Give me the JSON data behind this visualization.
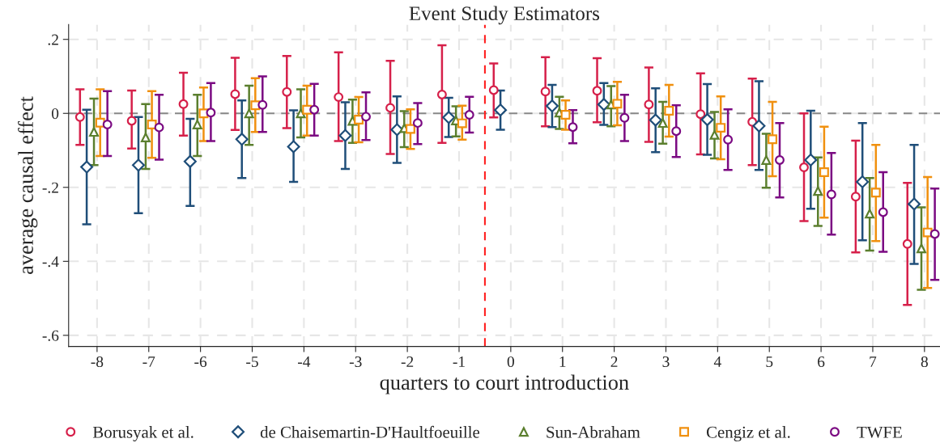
{
  "chart_data": {
    "type": "scatter",
    "title": "Event Study Estimators",
    "xlabel": "quarters to court introduction",
    "ylabel": "average causal effect",
    "xlim": [
      -8.55,
      8.3
    ],
    "ylim": [
      -0.63,
      0.24
    ],
    "xticks": [
      -8,
      -7,
      -6,
      -5,
      -4,
      -3,
      -2,
      -1,
      0,
      1,
      2,
      3,
      4,
      5,
      6,
      7,
      8
    ],
    "yticks": [
      {
        "value": 0.2,
        "label": ".2"
      },
      0,
      {
        "value": -0.2,
        "label": "-.2"
      },
      {
        "value": -0.4,
        "label": "-.4"
      },
      {
        "value": -0.6,
        "label": "-.6"
      }
    ],
    "grid": true,
    "legend": "bottom",
    "ref_lines": [
      {
        "axis": "y",
        "value": 0,
        "color": "#888888",
        "line_style": "dashed"
      },
      {
        "axis": "x",
        "value": -0.5,
        "color": "#ff2020",
        "line_style": "dashed"
      }
    ],
    "series": [
      {
        "name": "Borusyak et al.",
        "color": "#d6204a",
        "marker": "circle",
        "x": [
          -8.33,
          -7.33,
          -6.33,
          -5.33,
          -4.33,
          -3.33,
          -2.33,
          -1.33,
          -0.33,
          0.67,
          1.67,
          2.67,
          3.67,
          4.67,
          5.67,
          6.67,
          7.67
        ],
        "values": [
          -0.01,
          -0.02,
          0.025,
          0.052,
          0.058,
          0.044,
          0.015,
          0.051,
          0.063,
          0.059,
          0.061,
          0.024,
          -0.002,
          -0.023,
          -0.146,
          -0.225,
          -0.353
        ],
        "errors": [
          [
            -0.085,
            0.065
          ],
          [
            -0.095,
            0.062
          ],
          [
            -0.06,
            0.11
          ],
          [
            -0.045,
            0.15
          ],
          [
            -0.04,
            0.155
          ],
          [
            -0.075,
            0.165
          ],
          [
            -0.11,
            0.142
          ],
          [
            -0.08,
            0.184
          ],
          [
            -0.011,
            0.135
          ],
          [
            -0.035,
            0.152
          ],
          [
            -0.024,
            0.149
          ],
          [
            -0.077,
            0.124
          ],
          [
            -0.111,
            0.108
          ],
          [
            -0.14,
            0.094
          ],
          [
            -0.291,
            0.0
          ],
          [
            -0.376,
            -0.074
          ],
          [
            -0.518,
            -0.188
          ]
        ]
      },
      {
        "name": "de Chaisemartin-D'Haultfoeuille",
        "color": "#1f4e79",
        "marker": "diamond",
        "x": [
          -8.2,
          -7.2,
          -6.2,
          -5.2,
          -4.2,
          -3.2,
          -2.2,
          -1.2,
          -0.2,
          0.8,
          1.8,
          2.8,
          3.8,
          4.8,
          5.8,
          6.8,
          7.8
        ],
        "values": [
          -0.145,
          -0.14,
          -0.13,
          -0.07,
          -0.09,
          -0.06,
          -0.044,
          -0.011,
          0.009,
          0.02,
          0.024,
          -0.018,
          -0.017,
          -0.034,
          -0.126,
          -0.185,
          -0.245
        ],
        "errors": [
          [
            -0.3,
            0.01
          ],
          [
            -0.27,
            -0.01
          ],
          [
            -0.25,
            -0.015
          ],
          [
            -0.175,
            0.035
          ],
          [
            -0.185,
            0.008
          ],
          [
            -0.15,
            0.03
          ],
          [
            -0.134,
            0.046
          ],
          [
            -0.064,
            0.042
          ],
          [
            -0.044,
            0.062
          ],
          [
            -0.037,
            0.077
          ],
          [
            -0.031,
            0.082
          ],
          [
            -0.105,
            0.068
          ],
          [
            -0.112,
            0.079
          ],
          [
            -0.153,
            0.087
          ],
          [
            -0.258,
            0.007
          ],
          [
            -0.343,
            -0.026
          ],
          [
            -0.407,
            -0.085
          ]
        ]
      },
      {
        "name": "Sun-Abraham",
        "color": "#5b7f2e",
        "marker": "triangle",
        "x": [
          -8.06,
          -7.06,
          -6.06,
          -5.06,
          -4.06,
          -3.06,
          -2.06,
          -1.06,
          0.94,
          1.94,
          2.94,
          3.94,
          4.94,
          5.94,
          6.94,
          7.94
        ],
        "values": [
          -0.05,
          -0.065,
          -0.03,
          0.0,
          0.0,
          -0.02,
          -0.04,
          -0.019,
          0.002,
          0.024,
          -0.026,
          -0.058,
          -0.126,
          -0.21,
          -0.271,
          -0.365
        ],
        "errors": [
          [
            -0.14,
            0.04
          ],
          [
            -0.15,
            0.025
          ],
          [
            -0.115,
            0.05
          ],
          [
            -0.085,
            0.075
          ],
          [
            -0.065,
            0.065
          ],
          [
            -0.08,
            0.037
          ],
          [
            -0.091,
            0.006
          ],
          [
            -0.062,
            0.019
          ],
          [
            -0.042,
            0.045
          ],
          [
            -0.035,
            0.074
          ],
          [
            -0.082,
            0.031
          ],
          [
            -0.122,
            0.004
          ],
          [
            -0.201,
            -0.055
          ],
          [
            -0.304,
            -0.119
          ],
          [
            -0.371,
            -0.175
          ],
          [
            -0.477,
            -0.254
          ]
        ]
      },
      {
        "name": "Cengiz et al.",
        "color": "#f0900f",
        "marker": "square",
        "x": [
          -7.94,
          -6.94,
          -5.94,
          -4.94,
          -3.94,
          -2.94,
          -1.94,
          -0.94,
          1.06,
          2.06,
          3.06,
          4.06,
          5.06,
          6.06,
          7.06,
          8.06
        ],
        "values": [
          -0.025,
          -0.03,
          0.0,
          0.022,
          0.01,
          -0.017,
          -0.042,
          -0.027,
          -0.004,
          0.026,
          0.007,
          -0.039,
          -0.07,
          -0.159,
          -0.214,
          -0.322
        ],
        "errors": [
          [
            -0.115,
            0.065
          ],
          [
            -0.12,
            0.06
          ],
          [
            -0.075,
            0.07
          ],
          [
            -0.05,
            0.095
          ],
          [
            -0.06,
            0.075
          ],
          [
            -0.078,
            0.044
          ],
          [
            -0.096,
            0.011
          ],
          [
            -0.071,
            0.021
          ],
          [
            -0.044,
            0.035
          ],
          [
            -0.032,
            0.085
          ],
          [
            -0.063,
            0.077
          ],
          [
            -0.124,
            0.046
          ],
          [
            -0.17,
            0.031
          ],
          [
            -0.282,
            -0.036
          ],
          [
            -0.345,
            -0.085
          ],
          [
            -0.472,
            -0.172
          ]
        ]
      },
      {
        "name": "TWFE",
        "color": "#7b0a82",
        "marker": "circle",
        "x": [
          -7.8,
          -6.8,
          -5.8,
          -4.8,
          -3.8,
          -2.8,
          -1.8,
          -0.8,
          1.2,
          2.2,
          3.2,
          4.2,
          5.2,
          6.2,
          7.2,
          8.2
        ],
        "values": [
          -0.03,
          -0.038,
          0.002,
          0.023,
          0.01,
          -0.009,
          -0.026,
          -0.004,
          -0.037,
          -0.012,
          -0.048,
          -0.071,
          -0.126,
          -0.219,
          -0.267,
          -0.326
        ],
        "errors": [
          [
            -0.115,
            0.06
          ],
          [
            -0.125,
            0.05
          ],
          [
            -0.075,
            0.082
          ],
          [
            -0.05,
            0.1
          ],
          [
            -0.06,
            0.08
          ],
          [
            -0.072,
            0.057
          ],
          [
            -0.083,
            0.028
          ],
          [
            -0.052,
            0.045
          ],
          [
            -0.081,
            0.009
          ],
          [
            -0.075,
            0.05
          ],
          [
            -0.118,
            0.022
          ],
          [
            -0.153,
            0.011
          ],
          [
            -0.227,
            -0.026
          ],
          [
            -0.328,
            -0.107
          ],
          [
            -0.374,
            -0.159
          ],
          [
            -0.45,
            -0.203
          ]
        ]
      }
    ]
  }
}
